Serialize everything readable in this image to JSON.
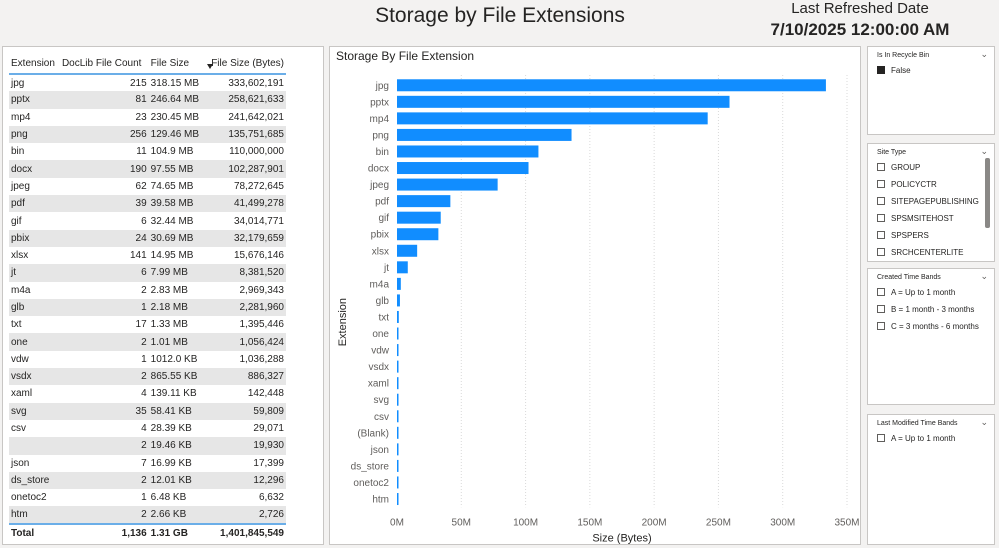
{
  "header": {
    "title": "Storage by File Extensions",
    "refresh_label": "Last Refreshed Date",
    "refresh_value": "7/10/2025 12:00:00 AM"
  },
  "table": {
    "columns": [
      "Extension",
      "DocLib File Count",
      "File Size",
      "File Size (Bytes)"
    ],
    "rows": [
      [
        "jpg",
        "215",
        "318.15 MB",
        "333,602,191"
      ],
      [
        "pptx",
        "81",
        "246.64 MB",
        "258,621,633"
      ],
      [
        "mp4",
        "23",
        "230.45 MB",
        "241,642,021"
      ],
      [
        "png",
        "256",
        "129.46 MB",
        "135,751,685"
      ],
      [
        "bin",
        "11",
        "104.9 MB",
        "110,000,000"
      ],
      [
        "docx",
        "190",
        "97.55 MB",
        "102,287,901"
      ],
      [
        "jpeg",
        "62",
        "74.65 MB",
        "78,272,645"
      ],
      [
        "pdf",
        "39",
        "39.58 MB",
        "41,499,278"
      ],
      [
        "gif",
        "6",
        "32.44 MB",
        "34,014,771"
      ],
      [
        "pbix",
        "24",
        "30.69 MB",
        "32,179,659"
      ],
      [
        "xlsx",
        "141",
        "14.95 MB",
        "15,676,146"
      ],
      [
        "jt",
        "6",
        "7.99 MB",
        "8,381,520"
      ],
      [
        "m4a",
        "2",
        "2.83 MB",
        "2,969,343"
      ],
      [
        "glb",
        "1",
        "2.18 MB",
        "2,281,960"
      ],
      [
        "txt",
        "17",
        "1.33 MB",
        "1,395,446"
      ],
      [
        "one",
        "2",
        "1.01 MB",
        "1,056,424"
      ],
      [
        "vdw",
        "1",
        "1012.0 KB",
        "1,036,288"
      ],
      [
        "vsdx",
        "2",
        "865.55 KB",
        "886,327"
      ],
      [
        "xaml",
        "4",
        "139.11 KB",
        "142,448"
      ],
      [
        "svg",
        "35",
        "58.41 KB",
        "59,809"
      ],
      [
        "csv",
        "4",
        "28.39 KB",
        "29,071"
      ],
      [
        "",
        "2",
        "19.46 KB",
        "19,930"
      ],
      [
        "json",
        "7",
        "16.99 KB",
        "17,399"
      ],
      [
        "ds_store",
        "2",
        "12.01 KB",
        "12,296"
      ],
      [
        "onetoc2",
        "1",
        "6.48 KB",
        "6,632"
      ],
      [
        "htm",
        "2",
        "2.66 KB",
        "2,726"
      ]
    ],
    "total": [
      "Total",
      "1,136",
      "1.31 GB",
      "1,401,845,549"
    ]
  },
  "chart_data": {
    "type": "bar",
    "orientation": "horizontal",
    "title": "Storage By File Extension",
    "xlabel": "Size (Bytes)",
    "ylabel": "Extension",
    "categories": [
      "jpg",
      "pptx",
      "mp4",
      "png",
      "bin",
      "docx",
      "jpeg",
      "pdf",
      "gif",
      "pbix",
      "xlsx",
      "jt",
      "m4a",
      "glb",
      "txt",
      "one",
      "vdw",
      "vsdx",
      "xaml",
      "svg",
      "csv",
      "(Blank)",
      "json",
      "ds_store",
      "onetoc2",
      "htm"
    ],
    "values": [
      333602191,
      258621633,
      241642021,
      135751685,
      110000000,
      102287901,
      78272645,
      41499278,
      34014771,
      32179659,
      15676146,
      8381520,
      2969343,
      2281960,
      1395446,
      1056424,
      1036288,
      886327,
      142448,
      59809,
      29071,
      19930,
      17399,
      12296,
      6632,
      2726
    ],
    "xlim": [
      0,
      350000000
    ],
    "xticks": [
      0,
      50000000,
      100000000,
      150000000,
      200000000,
      250000000,
      300000000,
      350000000
    ],
    "xtick_labels": [
      "0M",
      "50M",
      "100M",
      "150M",
      "200M",
      "250M",
      "300M",
      "350M"
    ],
    "grid": true,
    "bar_color": "#118dff"
  },
  "slicers": [
    {
      "title": "Is In Recycle Bin",
      "options": [
        {
          "label": "False",
          "checked": true
        }
      ]
    },
    {
      "title": "Site Type",
      "options": [
        {
          "label": "GROUP",
          "checked": false
        },
        {
          "label": "POLICYCTR",
          "checked": false
        },
        {
          "label": "SITEPAGEPUBLISHING",
          "checked": false
        },
        {
          "label": "SPSMSITEHOST",
          "checked": false
        },
        {
          "label": "SPSPERS",
          "checked": false
        },
        {
          "label": "SRCHCENTERLITE",
          "checked": false
        }
      ]
    },
    {
      "title": "Created Time Bands",
      "options": [
        {
          "label": "A = Up to 1 month",
          "checked": false
        },
        {
          "label": "B = 1 month - 3 months",
          "checked": false
        },
        {
          "label": "C = 3 months - 6 months",
          "checked": false
        }
      ]
    },
    {
      "title": "Last Modified Time Bands",
      "options": [
        {
          "label": "A = Up to 1 month",
          "checked": false
        }
      ]
    }
  ],
  "icons": {
    "slicer_expand": "chevron-down-icon"
  }
}
